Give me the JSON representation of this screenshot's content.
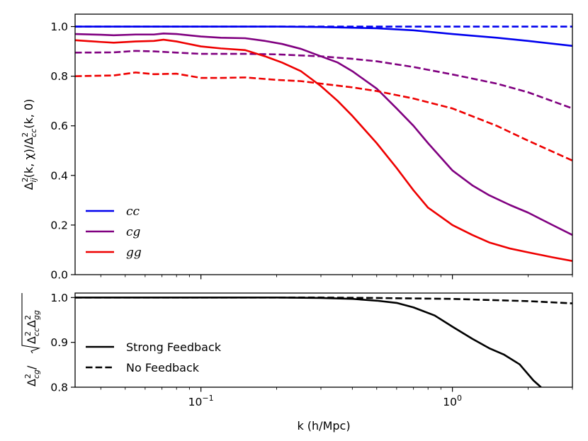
{
  "chart_data": [
    {
      "type": "line",
      "panel": "top",
      "ylabel": "Δ²ij(k, χ)/Δ²cc(k, 0)",
      "ylabel_parts": {
        "base": "Δ",
        "sup1": "2",
        "sub1": "ij",
        "mid": "(k, χ)/Δ",
        "sup2": "2",
        "sub2": "cc",
        "end": "(k, 0)"
      },
      "xscale": "log",
      "xlim": [
        0.0316,
        3.0
      ],
      "ylim": [
        0.0,
        1.05
      ],
      "yticks": [
        0.0,
        0.2,
        0.4,
        0.6,
        0.8,
        1.0
      ],
      "ytick_labels": [
        "0.0",
        "0.2",
        "0.4",
        "0.6",
        "0.8",
        "1.0"
      ],
      "legend": [
        "cc",
        "cg",
        "gg"
      ],
      "legend_position": "lower-left",
      "series": [
        {
          "name": "cc",
          "style": "solid",
          "color": "#0000ee",
          "x": [
            0.0316,
            0.1,
            0.2,
            0.3,
            0.5,
            0.7,
            1.0,
            1.5,
            2.0,
            3.0
          ],
          "y": [
            1.0,
            1.0,
            1.0,
            0.998,
            0.993,
            0.985,
            0.97,
            0.955,
            0.942,
            0.922
          ]
        },
        {
          "name": "cc",
          "style": "dashed",
          "color": "#0000ee",
          "x": [
            0.0316,
            3.0
          ],
          "y": [
            1.0,
            1.0
          ]
        },
        {
          "name": "cg",
          "style": "solid",
          "color": "#800080",
          "x": [
            0.0316,
            0.04,
            0.045,
            0.055,
            0.065,
            0.071,
            0.08,
            0.1,
            0.12,
            0.15,
            0.18,
            0.21,
            0.25,
            0.3,
            0.35,
            0.4,
            0.5,
            0.6,
            0.7,
            0.8,
            1.0,
            1.2,
            1.4,
            1.7,
            2.0,
            2.5,
            3.0
          ],
          "y": [
            0.97,
            0.967,
            0.965,
            0.968,
            0.968,
            0.972,
            0.97,
            0.96,
            0.955,
            0.953,
            0.942,
            0.93,
            0.91,
            0.88,
            0.855,
            0.82,
            0.75,
            0.67,
            0.6,
            0.53,
            0.42,
            0.36,
            0.32,
            0.28,
            0.25,
            0.2,
            0.16
          ]
        },
        {
          "name": "cg",
          "style": "dashed",
          "color": "#800080",
          "x": [
            0.0316,
            0.045,
            0.055,
            0.065,
            0.08,
            0.1,
            0.15,
            0.2,
            0.3,
            0.4,
            0.5,
            0.7,
            1.0,
            1.5,
            2.0,
            3.0
          ],
          "y": [
            0.895,
            0.896,
            0.902,
            0.9,
            0.895,
            0.89,
            0.89,
            0.888,
            0.88,
            0.87,
            0.86,
            0.837,
            0.807,
            0.77,
            0.735,
            0.67
          ]
        },
        {
          "name": "gg",
          "style": "solid",
          "color": "#ee0000",
          "x": [
            0.0316,
            0.04,
            0.045,
            0.055,
            0.065,
            0.071,
            0.08,
            0.1,
            0.12,
            0.15,
            0.18,
            0.21,
            0.25,
            0.3,
            0.35,
            0.4,
            0.5,
            0.6,
            0.7,
            0.8,
            1.0,
            1.2,
            1.4,
            1.7,
            2.0,
            2.5,
            3.0
          ],
          "y": [
            0.945,
            0.938,
            0.935,
            0.94,
            0.942,
            0.947,
            0.94,
            0.92,
            0.912,
            0.905,
            0.88,
            0.855,
            0.82,
            0.76,
            0.7,
            0.64,
            0.53,
            0.43,
            0.34,
            0.27,
            0.2,
            0.16,
            0.13,
            0.105,
            0.09,
            0.07,
            0.055
          ]
        },
        {
          "name": "gg",
          "style": "dashed",
          "color": "#ee0000",
          "x": [
            0.0316,
            0.045,
            0.055,
            0.065,
            0.08,
            0.1,
            0.12,
            0.15,
            0.2,
            0.25,
            0.3,
            0.4,
            0.5,
            0.7,
            1.0,
            1.5,
            2.0,
            3.0
          ],
          "y": [
            0.8,
            0.803,
            0.815,
            0.808,
            0.81,
            0.793,
            0.793,
            0.795,
            0.785,
            0.78,
            0.77,
            0.755,
            0.74,
            0.71,
            0.67,
            0.6,
            0.54,
            0.46
          ]
        }
      ]
    },
    {
      "type": "line",
      "panel": "bottom",
      "ylabel": "Δ²cg/√(Δ²cc Δ²gg)",
      "ylabel_parts": {
        "base": "Δ",
        "sup": "2",
        "sub": "cg",
        "slash": "/",
        "r1": "Δ",
        "r1sup": "2",
        "r1sub": "cc",
        "r2": "Δ",
        "r2sup": "2",
        "r2sub": "gg"
      },
      "xlabel": "k (h/Mpc)",
      "xscale": "log",
      "xlim": [
        0.0316,
        3.0
      ],
      "ylim": [
        0.8,
        1.01
      ],
      "yticks": [
        0.8,
        0.9,
        1.0
      ],
      "ytick_labels": [
        "0.8",
        "0.9",
        "1.0"
      ],
      "xticks": [
        0.1,
        1.0
      ],
      "xtick_labels": [
        {
          "base": "10",
          "exp": "−1"
        },
        {
          "base": "10",
          "exp": "0"
        }
      ],
      "legend": [
        "Strong Feedback",
        "No Feedback"
      ],
      "legend_position": "lower-left",
      "series": [
        {
          "name": "Strong Feedback",
          "style": "solid",
          "color": "#000000",
          "x": [
            0.0316,
            0.1,
            0.2,
            0.3,
            0.4,
            0.5,
            0.6,
            0.7,
            0.85,
            1.0,
            1.2,
            1.4,
            1.6,
            1.85,
            2.1,
            2.25
          ],
          "y": [
            1.0,
            1.0,
            1.0,
            0.999,
            0.997,
            0.993,
            0.988,
            0.978,
            0.96,
            0.935,
            0.908,
            0.887,
            0.873,
            0.851,
            0.815,
            0.8
          ]
        },
        {
          "name": "No Feedback",
          "style": "dashed",
          "color": "#000000",
          "x": [
            0.0316,
            0.3,
            0.5,
            0.7,
            1.0,
            1.5,
            2.0,
            3.0
          ],
          "y": [
            1.0,
            1.0,
            0.999,
            0.998,
            0.997,
            0.994,
            0.992,
            0.987
          ]
        }
      ]
    }
  ]
}
